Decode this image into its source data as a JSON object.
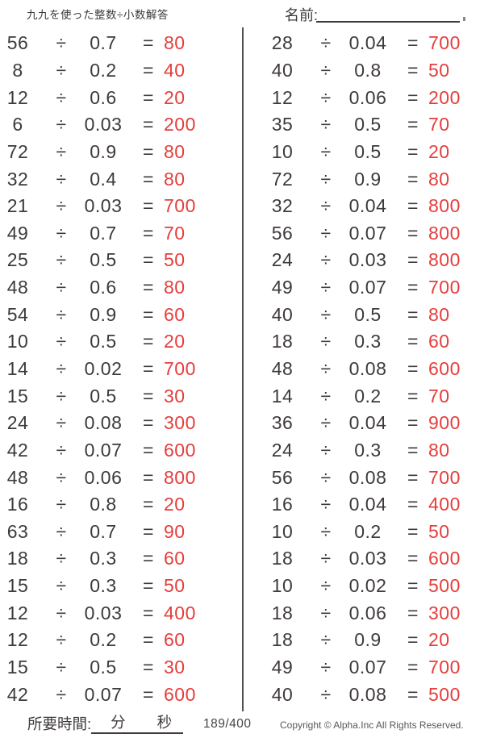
{
  "title": "九九を使った整数÷小数解答",
  "name_label": "名前:",
  "problems": {
    "divide_sign": "÷",
    "equals_sign": "=",
    "left": [
      {
        "dividend": "56",
        "divisor": "0.7",
        "answer": "80"
      },
      {
        "dividend": "8",
        "divisor": "0.2",
        "answer": "40"
      },
      {
        "dividend": "12",
        "divisor": "0.6",
        "answer": "20"
      },
      {
        "dividend": "6",
        "divisor": "0.03",
        "answer": "200"
      },
      {
        "dividend": "72",
        "divisor": "0.9",
        "answer": "80"
      },
      {
        "dividend": "32",
        "divisor": "0.4",
        "answer": "80"
      },
      {
        "dividend": "21",
        "divisor": "0.03",
        "answer": "700"
      },
      {
        "dividend": "49",
        "divisor": "0.7",
        "answer": "70"
      },
      {
        "dividend": "25",
        "divisor": "0.5",
        "answer": "50"
      },
      {
        "dividend": "48",
        "divisor": "0.6",
        "answer": "80"
      },
      {
        "dividend": "54",
        "divisor": "0.9",
        "answer": "60"
      },
      {
        "dividend": "10",
        "divisor": "0.5",
        "answer": "20"
      },
      {
        "dividend": "14",
        "divisor": "0.02",
        "answer": "700"
      },
      {
        "dividend": "15",
        "divisor": "0.5",
        "answer": "30"
      },
      {
        "dividend": "24",
        "divisor": "0.08",
        "answer": "300"
      },
      {
        "dividend": "42",
        "divisor": "0.07",
        "answer": "600"
      },
      {
        "dividend": "48",
        "divisor": "0.06",
        "answer": "800"
      },
      {
        "dividend": "16",
        "divisor": "0.8",
        "answer": "20"
      },
      {
        "dividend": "63",
        "divisor": "0.7",
        "answer": "90"
      },
      {
        "dividend": "18",
        "divisor": "0.3",
        "answer": "60"
      },
      {
        "dividend": "15",
        "divisor": "0.3",
        "answer": "50"
      },
      {
        "dividend": "12",
        "divisor": "0.03",
        "answer": "400"
      },
      {
        "dividend": "12",
        "divisor": "0.2",
        "answer": "60"
      },
      {
        "dividend": "15",
        "divisor": "0.5",
        "answer": "30"
      },
      {
        "dividend": "42",
        "divisor": "0.07",
        "answer": "600"
      }
    ],
    "right": [
      {
        "dividend": "28",
        "divisor": "0.04",
        "answer": "700"
      },
      {
        "dividend": "40",
        "divisor": "0.8",
        "answer": "50"
      },
      {
        "dividend": "12",
        "divisor": "0.06",
        "answer": "200"
      },
      {
        "dividend": "35",
        "divisor": "0.5",
        "answer": "70"
      },
      {
        "dividend": "10",
        "divisor": "0.5",
        "answer": "20"
      },
      {
        "dividend": "72",
        "divisor": "0.9",
        "answer": "80"
      },
      {
        "dividend": "32",
        "divisor": "0.04",
        "answer": "800"
      },
      {
        "dividend": "56",
        "divisor": "0.07",
        "answer": "800"
      },
      {
        "dividend": "24",
        "divisor": "0.03",
        "answer": "800"
      },
      {
        "dividend": "49",
        "divisor": "0.07",
        "answer": "700"
      },
      {
        "dividend": "40",
        "divisor": "0.5",
        "answer": "80"
      },
      {
        "dividend": "18",
        "divisor": "0.3",
        "answer": "60"
      },
      {
        "dividend": "48",
        "divisor": "0.08",
        "answer": "600"
      },
      {
        "dividend": "14",
        "divisor": "0.2",
        "answer": "70"
      },
      {
        "dividend": "36",
        "divisor": "0.04",
        "answer": "900"
      },
      {
        "dividend": "24",
        "divisor": "0.3",
        "answer": "80"
      },
      {
        "dividend": "56",
        "divisor": "0.08",
        "answer": "700"
      },
      {
        "dividend": "16",
        "divisor": "0.04",
        "answer": "400"
      },
      {
        "dividend": "10",
        "divisor": "0.2",
        "answer": "50"
      },
      {
        "dividend": "18",
        "divisor": "0.03",
        "answer": "600"
      },
      {
        "dividend": "10",
        "divisor": "0.02",
        "answer": "500"
      },
      {
        "dividend": "18",
        "divisor": "0.06",
        "answer": "300"
      },
      {
        "dividend": "18",
        "divisor": "0.9",
        "answer": "20"
      },
      {
        "dividend": "49",
        "divisor": "0.07",
        "answer": "700"
      },
      {
        "dividend": "40",
        "divisor": "0.08",
        "answer": "500"
      }
    ]
  },
  "footer": {
    "time_label": "所要時間:",
    "minutes_label": "分",
    "seconds_label": "秒",
    "page_indicator": "189/400",
    "copyright": "Copyright © Alpha.Inc All Rights Reserved."
  },
  "colors": {
    "answer_red": "#e63d3b",
    "text_dark": "#3e3a39"
  }
}
